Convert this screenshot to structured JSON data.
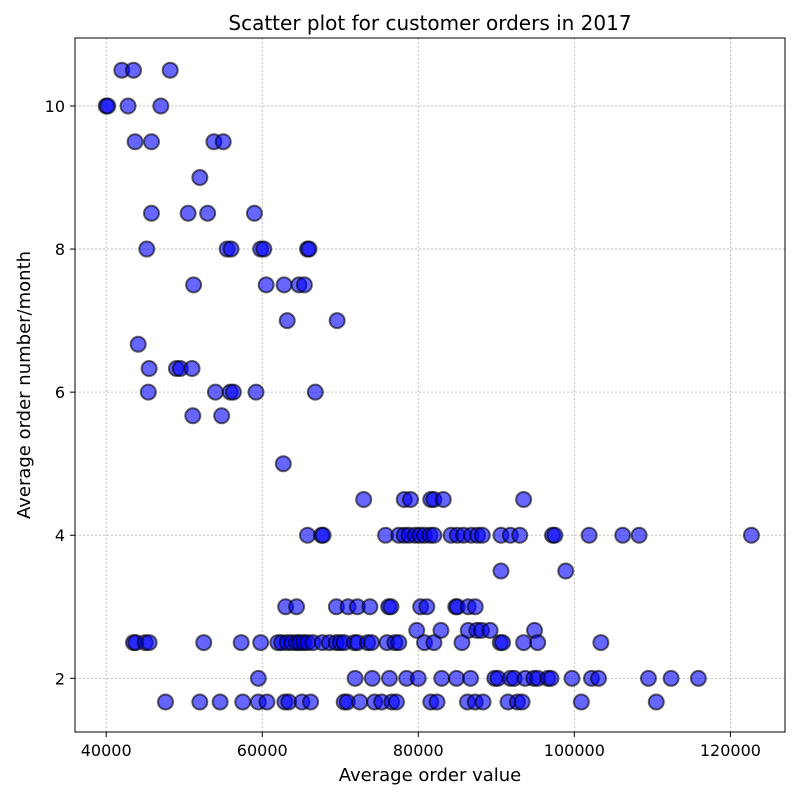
{
  "chart_data": {
    "type": "scatter",
    "title": "Scatter plot for customer orders in 2017",
    "xlabel": "Average order value",
    "ylabel": "Average order number/month",
    "xlim": [
      36000,
      127000
    ],
    "ylim": [
      1.25,
      10.95
    ],
    "xticks": [
      40000,
      60000,
      80000,
      100000,
      120000
    ],
    "yticks": [
      2,
      4,
      6,
      8,
      10
    ],
    "grid": true,
    "marker_color": "#0000ff",
    "series": [
      {
        "points": [
          [
            40000,
            10
          ],
          [
            40200,
            10
          ],
          [
            42000,
            10.5
          ],
          [
            43500,
            10.5
          ],
          [
            48200,
            10.5
          ],
          [
            42800,
            10
          ],
          [
            47000,
            10
          ],
          [
            43700,
            9.5
          ],
          [
            45800,
            9.5
          ],
          [
            53800,
            9.5
          ],
          [
            55000,
            9.5
          ],
          [
            52000,
            9
          ],
          [
            45800,
            8.5
          ],
          [
            50500,
            8.5
          ],
          [
            53000,
            8.5
          ],
          [
            59000,
            8.5
          ],
          [
            45200,
            8
          ],
          [
            55500,
            8
          ],
          [
            56000,
            8
          ],
          [
            59800,
            8
          ],
          [
            60200,
            8
          ],
          [
            65800,
            8
          ],
          [
            66000,
            8
          ],
          [
            51200,
            7.5
          ],
          [
            60500,
            7.5
          ],
          [
            62800,
            7.5
          ],
          [
            64700,
            7.5
          ],
          [
            65400,
            7.5
          ],
          [
            63200,
            7
          ],
          [
            69600,
            7
          ],
          [
            44100,
            6.67
          ],
          [
            45500,
            6.33
          ],
          [
            49000,
            6.33
          ],
          [
            49500,
            6.33
          ],
          [
            51000,
            6.33
          ],
          [
            45400,
            6
          ],
          [
            54000,
            6
          ],
          [
            55900,
            6
          ],
          [
            56300,
            6
          ],
          [
            59200,
            6
          ],
          [
            66800,
            6
          ],
          [
            51100,
            5.67
          ],
          [
            54800,
            5.67
          ],
          [
            62700,
            5
          ],
          [
            73000,
            4.5
          ],
          [
            78200,
            4.5
          ],
          [
            79000,
            4.5
          ],
          [
            81600,
            4.5
          ],
          [
            82000,
            4.5
          ],
          [
            83200,
            4.5
          ],
          [
            93500,
            4.5
          ],
          [
            65800,
            4
          ],
          [
            67600,
            4
          ],
          [
            67800,
            4
          ],
          [
            75800,
            4
          ],
          [
            77500,
            4
          ],
          [
            78200,
            4
          ],
          [
            78800,
            4
          ],
          [
            79600,
            4
          ],
          [
            80200,
            4
          ],
          [
            80800,
            4
          ],
          [
            81500,
            4
          ],
          [
            82000,
            4
          ],
          [
            84200,
            4
          ],
          [
            85000,
            4
          ],
          [
            85800,
            4
          ],
          [
            86800,
            4
          ],
          [
            87600,
            4
          ],
          [
            88200,
            4
          ],
          [
            90600,
            4
          ],
          [
            91800,
            4
          ],
          [
            93000,
            4
          ],
          [
            97200,
            4
          ],
          [
            97500,
            4
          ],
          [
            101900,
            4
          ],
          [
            106200,
            4
          ],
          [
            108300,
            4
          ],
          [
            122700,
            4
          ],
          [
            90600,
            3.5
          ],
          [
            98900,
            3.5
          ],
          [
            63000,
            3
          ],
          [
            64400,
            3
          ],
          [
            69500,
            3
          ],
          [
            71000,
            3
          ],
          [
            72200,
            3
          ],
          [
            73800,
            3
          ],
          [
            76200,
            3
          ],
          [
            76500,
            3
          ],
          [
            80300,
            3
          ],
          [
            81100,
            3
          ],
          [
            84800,
            3
          ],
          [
            85000,
            3
          ],
          [
            86400,
            3
          ],
          [
            87300,
            3
          ],
          [
            79800,
            2.67
          ],
          [
            82900,
            2.67
          ],
          [
            86400,
            2.67
          ],
          [
            87500,
            2.67
          ],
          [
            88100,
            2.67
          ],
          [
            89200,
            2.67
          ],
          [
            94900,
            2.67
          ],
          [
            43500,
            2.5
          ],
          [
            43800,
            2.5
          ],
          [
            45000,
            2.5
          ],
          [
            45500,
            2.5
          ],
          [
            52500,
            2.5
          ],
          [
            57300,
            2.5
          ],
          [
            59800,
            2.5
          ],
          [
            62000,
            2.5
          ],
          [
            62500,
            2.5
          ],
          [
            63200,
            2.5
          ],
          [
            63800,
            2.5
          ],
          [
            64400,
            2.5
          ],
          [
            64800,
            2.5
          ],
          [
            65300,
            2.5
          ],
          [
            65800,
            2.5
          ],
          [
            66500,
            2.5
          ],
          [
            67700,
            2.5
          ],
          [
            68600,
            2.5
          ],
          [
            69500,
            2.5
          ],
          [
            70000,
            2.5
          ],
          [
            70500,
            2.5
          ],
          [
            71800,
            2.5
          ],
          [
            72200,
            2.5
          ],
          [
            73500,
            2.5
          ],
          [
            74000,
            2.5
          ],
          [
            76000,
            2.5
          ],
          [
            77000,
            2.5
          ],
          [
            77500,
            2.5
          ],
          [
            80800,
            2.5
          ],
          [
            82000,
            2.5
          ],
          [
            85600,
            2.5
          ],
          [
            90500,
            2.5
          ],
          [
            90800,
            2.5
          ],
          [
            93500,
            2.5
          ],
          [
            95300,
            2.5
          ],
          [
            103400,
            2.5
          ],
          [
            59500,
            2
          ],
          [
            71900,
            2
          ],
          [
            74100,
            2
          ],
          [
            76300,
            2
          ],
          [
            78500,
            2
          ],
          [
            80000,
            2
          ],
          [
            83000,
            2
          ],
          [
            84900,
            2
          ],
          [
            86700,
            2
          ],
          [
            89800,
            2
          ],
          [
            90200,
            2
          ],
          [
            91800,
            2
          ],
          [
            92300,
            2
          ],
          [
            93700,
            2
          ],
          [
            94800,
            2
          ],
          [
            95300,
            2
          ],
          [
            96600,
            2
          ],
          [
            97000,
            2
          ],
          [
            99700,
            2
          ],
          [
            102200,
            2
          ],
          [
            103100,
            2
          ],
          [
            109500,
            2
          ],
          [
            112400,
            2
          ],
          [
            115900,
            2
          ],
          [
            47600,
            1.67
          ],
          [
            52000,
            1.67
          ],
          [
            54600,
            1.67
          ],
          [
            57500,
            1.67
          ],
          [
            59500,
            1.67
          ],
          [
            60600,
            1.67
          ],
          [
            62900,
            1.67
          ],
          [
            63400,
            1.67
          ],
          [
            65100,
            1.67
          ],
          [
            66200,
            1.67
          ],
          [
            70500,
            1.67
          ],
          [
            70900,
            1.67
          ],
          [
            72500,
            1.67
          ],
          [
            74400,
            1.67
          ],
          [
            75300,
            1.67
          ],
          [
            76600,
            1.67
          ],
          [
            77200,
            1.67
          ],
          [
            81600,
            1.67
          ],
          [
            82400,
            1.67
          ],
          [
            86300,
            1.67
          ],
          [
            87300,
            1.67
          ],
          [
            88300,
            1.67
          ],
          [
            91500,
            1.67
          ],
          [
            92700,
            1.67
          ],
          [
            93300,
            1.67
          ],
          [
            100900,
            1.67
          ],
          [
            110500,
            1.67
          ]
        ]
      }
    ]
  }
}
